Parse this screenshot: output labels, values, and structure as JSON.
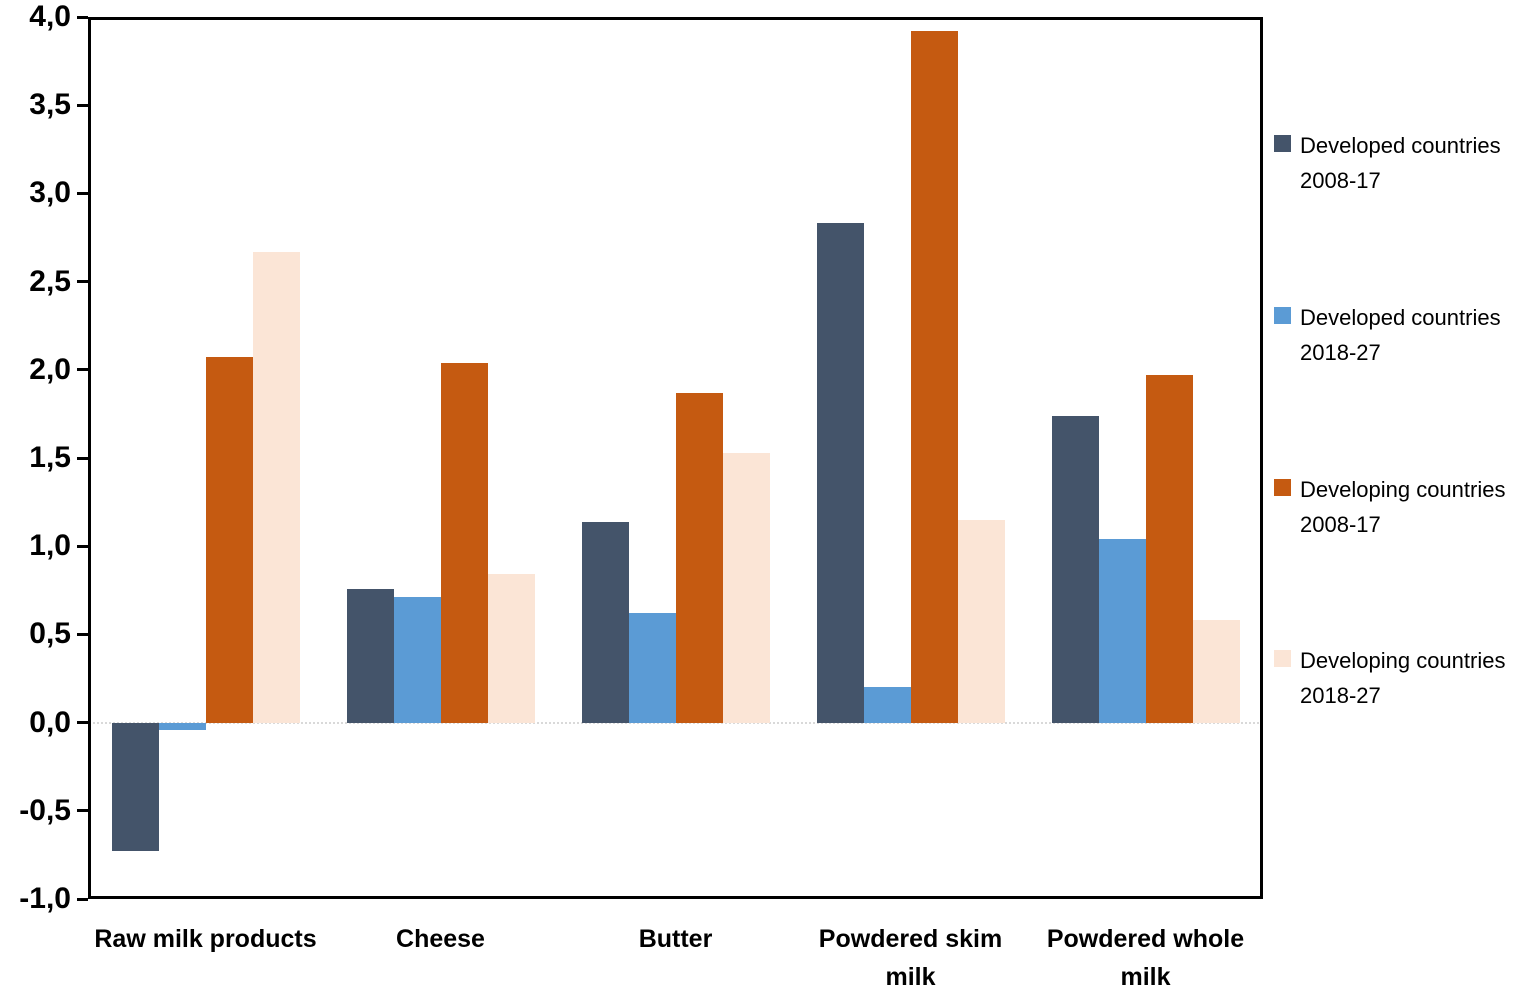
{
  "chart_data": {
    "type": "bar",
    "title": "",
    "xlabel": "",
    "ylabel": "",
    "categories": [
      "Raw milk products",
      "Cheese",
      "Butter",
      "Powdered skim milk",
      "Powdered whole milk"
    ],
    "series": [
      {
        "name": "Developed countries 2008-17",
        "color": "#44546A",
        "values": [
          -0.73,
          0.76,
          1.14,
          2.83,
          1.74
        ]
      },
      {
        "name": "Developed countries 2018-27",
        "color": "#5B9BD5",
        "values": [
          -0.04,
          0.71,
          0.62,
          0.2,
          1.04
        ]
      },
      {
        "name": "Developing countries 2008-17",
        "color": "#C55A11",
        "values": [
          2.07,
          2.04,
          1.87,
          3.92,
          1.97
        ]
      },
      {
        "name": "Developing countries 2018-27",
        "color": "#FBE5D6",
        "values": [
          2.67,
          0.84,
          1.53,
          1.15,
          0.58
        ]
      }
    ],
    "y_axis": {
      "min": -1.0,
      "max": 4.0,
      "step": 0.5,
      "tick_labels": [
        "4,0",
        "3,5",
        "3,0",
        "2,5",
        "2,0",
        "1,5",
        "1,0",
        "0,5",
        "0,0",
        "-0,5",
        "-1,0"
      ]
    },
    "legend_position": "right",
    "grid": "zero-line-only",
    "colors": {
      "axis": "#000000",
      "zero_line": "#d9d9d9",
      "text": "#000000"
    }
  }
}
